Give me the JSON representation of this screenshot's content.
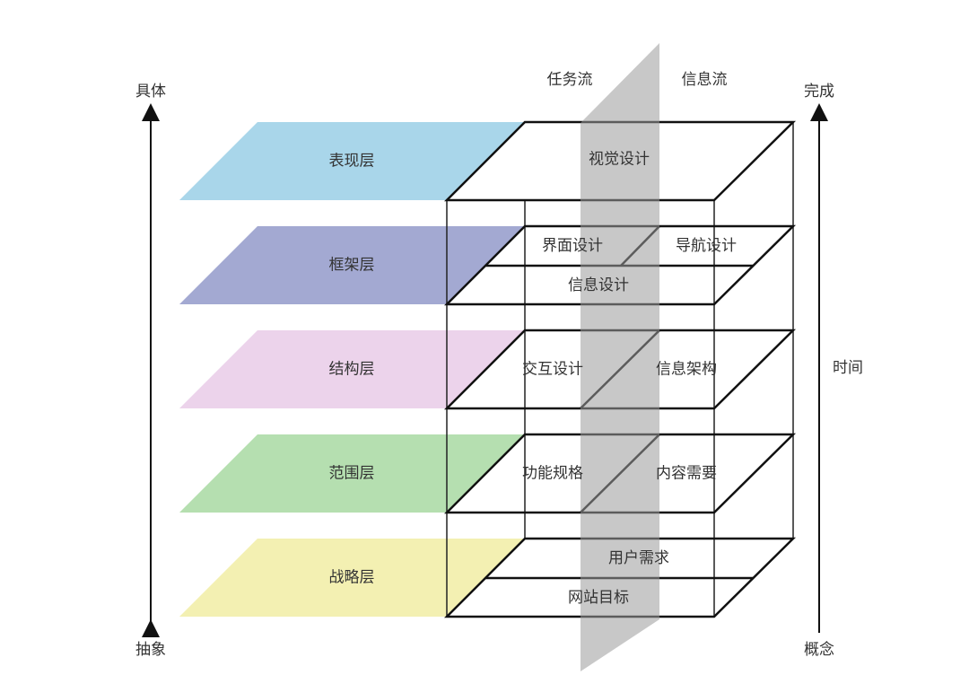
{
  "axis_left": {
    "top": "具体",
    "bottom": "抽象"
  },
  "axis_right": {
    "top": "完成",
    "middle": "时间",
    "bottom": "概念"
  },
  "plane_labels": {
    "left": "任务流",
    "right": "信息流"
  },
  "layers": [
    {
      "name": "表现层",
      "color": "#a9d6ea",
      "cells": [
        "视觉设计"
      ]
    },
    {
      "name": "框架层",
      "color": "#a3a9d2",
      "cells": [
        "界面设计",
        "导航设计",
        "信息设计"
      ]
    },
    {
      "name": "结构层",
      "color": "#ecd3eb",
      "cells": [
        "交互设计",
        "信息架构"
      ]
    },
    {
      "name": "范围层",
      "color": "#b5dfb0",
      "cells": [
        "功能规格",
        "内容需要"
      ]
    },
    {
      "name": "战略层",
      "color": "#f3f0b2",
      "cells": [
        "用户需求",
        "网站目标"
      ]
    }
  ]
}
